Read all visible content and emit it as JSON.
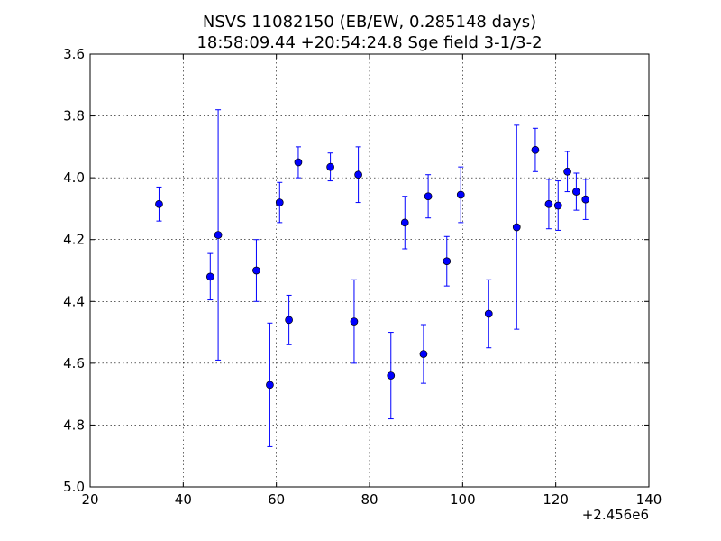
{
  "chart_data": {
    "type": "scatter",
    "title_line1": "NSVS 11082150 (EB/EW, 0.285148 days)",
    "title_line2": "18:58:09.44 +20:54:24.8 Sge field 3-1/3-2",
    "xlabel": "",
    "ylabel": "",
    "x_offset_label": "+2.456e6",
    "xlim": [
      20,
      140
    ],
    "ylim": [
      5.0,
      3.6
    ],
    "y_inverted": true,
    "grid": true,
    "x_ticks": [
      20,
      40,
      60,
      80,
      100,
      120,
      140
    ],
    "x_tick_labels": [
      "20",
      "40",
      "60",
      "80",
      "100",
      "120",
      "140"
    ],
    "y_ticks": [
      3.6,
      3.8,
      4.0,
      4.2,
      4.4,
      4.6,
      4.8,
      5.0
    ],
    "y_tick_labels": [
      "3.6",
      "3.8",
      "4.0",
      "4.2",
      "4.4",
      "4.6",
      "4.8",
      "5.0"
    ],
    "marker_color": "#0000ff",
    "points": [
      {
        "x": 34.8,
        "y": 4.085,
        "err": 0.055
      },
      {
        "x": 45.8,
        "y": 4.32,
        "err": 0.075
      },
      {
        "x": 47.5,
        "y": 4.185,
        "err": 0.405
      },
      {
        "x": 55.7,
        "y": 4.3,
        "err": 0.1
      },
      {
        "x": 58.6,
        "y": 4.67,
        "err": 0.2
      },
      {
        "x": 60.7,
        "y": 4.08,
        "err": 0.065
      },
      {
        "x": 62.7,
        "y": 4.46,
        "err": 0.08
      },
      {
        "x": 64.7,
        "y": 3.95,
        "err": 0.05
      },
      {
        "x": 71.6,
        "y": 3.965,
        "err": 0.045
      },
      {
        "x": 76.7,
        "y": 4.465,
        "err": 0.135
      },
      {
        "x": 77.6,
        "y": 3.99,
        "err": 0.09
      },
      {
        "x": 84.6,
        "y": 4.64,
        "err": 0.14
      },
      {
        "x": 87.6,
        "y": 4.145,
        "err": 0.085
      },
      {
        "x": 91.6,
        "y": 4.57,
        "err": 0.095
      },
      {
        "x": 92.6,
        "y": 4.06,
        "err": 0.07
      },
      {
        "x": 96.6,
        "y": 4.27,
        "err": 0.08
      },
      {
        "x": 99.6,
        "y": 4.055,
        "err": 0.09
      },
      {
        "x": 105.6,
        "y": 4.44,
        "err": 0.11
      },
      {
        "x": 111.6,
        "y": 4.16,
        "err": 0.33
      },
      {
        "x": 115.6,
        "y": 3.91,
        "err": 0.07
      },
      {
        "x": 118.5,
        "y": 4.085,
        "err": 0.08
      },
      {
        "x": 120.5,
        "y": 4.09,
        "err": 0.08
      },
      {
        "x": 122.5,
        "y": 3.98,
        "err": 0.065
      },
      {
        "x": 124.4,
        "y": 4.045,
        "err": 0.06
      },
      {
        "x": 126.4,
        "y": 4.07,
        "err": 0.065
      }
    ]
  }
}
